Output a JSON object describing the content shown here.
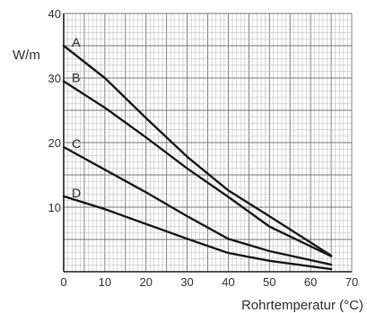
{
  "chart_data": {
    "type": "line",
    "xlabel": "Rohrtemperatur (°C)",
    "ylabel": "W/m",
    "xlim": [
      0,
      70
    ],
    "ylim": [
      0,
      40
    ],
    "x_ticks": [
      "0",
      "10",
      "20",
      "30",
      "40",
      "50",
      "60",
      "70"
    ],
    "y_ticks": [
      "10",
      "20",
      "30",
      "40"
    ],
    "grid": true,
    "series": [
      {
        "name": "A",
        "x": [
          0,
          10,
          20,
          30,
          40,
          50,
          65
        ],
        "y": [
          35,
          30,
          23.8,
          17.8,
          12.6,
          8.6,
          2.5
        ]
      },
      {
        "name": "B",
        "x": [
          0,
          10,
          20,
          30,
          40,
          50,
          65
        ],
        "y": [
          29.5,
          25.4,
          20.8,
          16,
          11.6,
          7,
          2.4
        ]
      },
      {
        "name": "C",
        "x": [
          0,
          10,
          20,
          30,
          40,
          50,
          65
        ],
        "y": [
          19.3,
          15.8,
          12.3,
          8.6,
          5.1,
          3.2,
          1.1
        ]
      },
      {
        "name": "D",
        "x": [
          0,
          10,
          20,
          30,
          40,
          50,
          65
        ],
        "y": [
          11.7,
          9.7,
          7.4,
          5.1,
          2.9,
          1.7,
          0.4
        ]
      }
    ]
  }
}
